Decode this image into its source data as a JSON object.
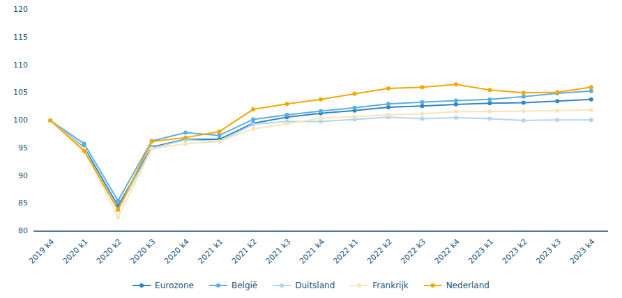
{
  "chart_data": {
    "type": "line",
    "categories": [
      "2019 k4",
      "2020 k1",
      "2020 k2",
      "2020 k3",
      "2020 k4",
      "2021 k1",
      "2021 k2",
      "2021 k3",
      "2021 k4",
      "2022 k1",
      "2022 k2",
      "2022 k3",
      "2022 k4",
      "2023 k1",
      "2023 k2",
      "2023 k3",
      "2023 k4"
    ],
    "series": [
      {
        "name": "Eurozone",
        "color": "#2E86C1",
        "marker": "circle",
        "values": [
          100.0,
          95.1,
          84.6,
          95.2,
          96.6,
          96.6,
          99.5,
          100.6,
          101.3,
          101.8,
          102.4,
          102.6,
          102.9,
          103.1,
          103.2,
          103.5,
          103.8
        ]
      },
      {
        "name": "België",
        "color": "#5DADE2",
        "marker": "circle",
        "values": [
          100.0,
          95.8,
          85.5,
          96.3,
          97.8,
          97.3,
          100.2,
          101.0,
          101.7,
          102.3,
          103.0,
          103.3,
          103.6,
          103.8,
          104.3,
          104.9,
          105.3
        ]
      },
      {
        "name": "Duitsland",
        "color": "#AED6F1",
        "marker": "circle",
        "values": [
          100.0,
          94.5,
          83.8,
          95.0,
          96.5,
          96.2,
          99.3,
          99.8,
          99.8,
          100.2,
          100.6,
          100.3,
          100.5,
          100.3,
          100.0,
          100.1,
          100.1
        ]
      },
      {
        "name": "Frankrijk",
        "color": "#F9E4B7",
        "marker": "circle",
        "values": [
          100.0,
          94.9,
          82.5,
          94.9,
          95.8,
          96.2,
          98.5,
          99.4,
          100.4,
          100.7,
          101.0,
          101.2,
          101.6,
          101.6,
          101.7,
          101.8,
          101.9
        ]
      },
      {
        "name": "Nederland",
        "color": "#F4A700",
        "marker": "circle",
        "values": [
          100.0,
          94.5,
          83.9,
          96.2,
          96.9,
          98.0,
          102.0,
          103.0,
          103.8,
          104.8,
          105.8,
          106.0,
          106.5,
          105.5,
          105.0,
          105.1,
          106.0
        ]
      }
    ],
    "ylim": [
      80,
      120
    ],
    "yticks": [
      80,
      85,
      90,
      95,
      100,
      105,
      110,
      115,
      120
    ],
    "grid": false,
    "legend": "bottom"
  }
}
